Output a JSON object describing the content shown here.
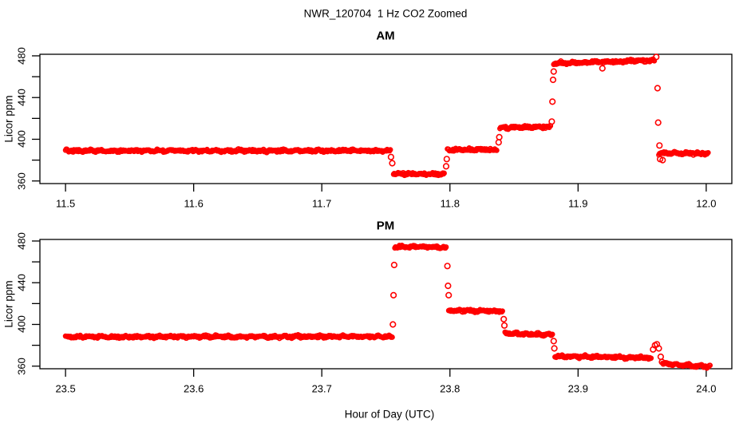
{
  "title": "NWR_120704  1 Hz CO2 Zoomed",
  "xlabel": "Hour of Day (UTC)",
  "colors": {
    "points": "#ff0000",
    "axis": "#000000",
    "background": "#ffffff"
  },
  "chart_data": [
    {
      "type": "scatter",
      "panel": "AM",
      "title": "AM",
      "ylabel": "Licor ppm",
      "marker": "open-circle",
      "legend": "none",
      "grid": "off",
      "xlim": [
        11.48,
        12.02
      ],
      "ylim": [
        357.5,
        481.5
      ],
      "xticks": [
        11.5,
        11.6,
        11.7,
        11.8,
        11.9,
        12.0
      ],
      "xtick_labels": [
        "11.5",
        "11.6",
        "11.7",
        "11.8",
        "11.9",
        "12.0"
      ],
      "ytick_major": [
        360,
        400,
        440,
        480
      ],
      "ytick_labels": [
        "360",
        "400",
        "440",
        "480"
      ],
      "ytick_minor": [
        380,
        420,
        460
      ],
      "series": [
        {
          "name": "CO2",
          "segments": [
            {
              "x0": 11.5,
              "x1": 11.754,
              "y0": 389.0,
              "y1": 389.0
            },
            {
              "x0": 11.756,
              "x1": 11.796,
              "y0": 367.0,
              "y1": 366.5
            },
            {
              "x0": 11.798,
              "x1": 11.837,
              "y0": 390.0,
              "y1": 390.0
            },
            {
              "x0": 11.839,
              "x1": 11.879,
              "y0": 411.0,
              "y1": 412.0
            },
            {
              "x0": 11.881,
              "x1": 11.96,
              "y0": 473.0,
              "y1": 475.5
            },
            {
              "x0": 11.963,
              "x1": 12.002,
              "y0": 386.5,
              "y1": 386.5
            }
          ],
          "transition_points": [
            [
              11.754,
              383
            ],
            [
              11.755,
              377
            ],
            [
              11.797,
              374
            ],
            [
              11.7975,
              381
            ],
            [
              11.838,
              397
            ],
            [
              11.8385,
              402
            ],
            [
              11.8795,
              417
            ],
            [
              11.88,
              436
            ],
            [
              11.8805,
              457
            ],
            [
              11.881,
              465
            ],
            [
              11.919,
              468
            ],
            [
              11.961,
              479
            ],
            [
              11.962,
              449
            ],
            [
              11.9625,
              416
            ],
            [
              11.9635,
              394
            ],
            [
              11.964,
              381
            ],
            [
              11.966,
              380
            ]
          ]
        }
      ]
    },
    {
      "type": "scatter",
      "panel": "PM",
      "title": "PM",
      "ylabel": "Licor ppm",
      "marker": "open-circle",
      "legend": "none",
      "grid": "off",
      "xlim": [
        23.48,
        24.02
      ],
      "ylim": [
        357.5,
        481.5
      ],
      "xticks": [
        23.5,
        23.6,
        23.7,
        23.8,
        23.9,
        24.0
      ],
      "xtick_labels": [
        "23.5",
        "23.6",
        "23.7",
        "23.8",
        "23.9",
        "24.0"
      ],
      "ytick_major": [
        360,
        400,
        440,
        480
      ],
      "ytick_labels": [
        "360",
        "400",
        "440",
        "480"
      ],
      "ytick_minor": [
        380,
        420,
        460
      ],
      "series": [
        {
          "name": "CO2",
          "segments": [
            {
              "x0": 23.5,
              "x1": 23.755,
              "y0": 388.0,
              "y1": 388.5
            },
            {
              "x0": 23.757,
              "x1": 23.797,
              "y0": 474.5,
              "y1": 474.0
            },
            {
              "x0": 23.799,
              "x1": 23.841,
              "y0": 413.5,
              "y1": 412.5
            },
            {
              "x0": 23.843,
              "x1": 23.88,
              "y0": 391.5,
              "y1": 390.0
            },
            {
              "x0": 23.882,
              "x1": 23.957,
              "y0": 369.5,
              "y1": 368.0
            },
            {
              "x0": 23.966,
              "x1": 24.003,
              "y0": 362.5,
              "y1": 359.5
            }
          ],
          "transition_points": [
            [
              23.7555,
              400
            ],
            [
              23.756,
              428
            ],
            [
              23.7565,
              457
            ],
            [
              23.798,
              456
            ],
            [
              23.7985,
              437
            ],
            [
              23.799,
              428
            ],
            [
              23.842,
              405
            ],
            [
              23.8425,
              399
            ],
            [
              23.881,
              384
            ],
            [
              23.8815,
              377
            ],
            [
              23.9585,
              376
            ],
            [
              23.96,
              380
            ],
            [
              23.9615,
              381
            ],
            [
              23.963,
              377
            ],
            [
              23.9645,
              369
            ],
            [
              23.9655,
              364
            ]
          ]
        }
      ]
    }
  ]
}
